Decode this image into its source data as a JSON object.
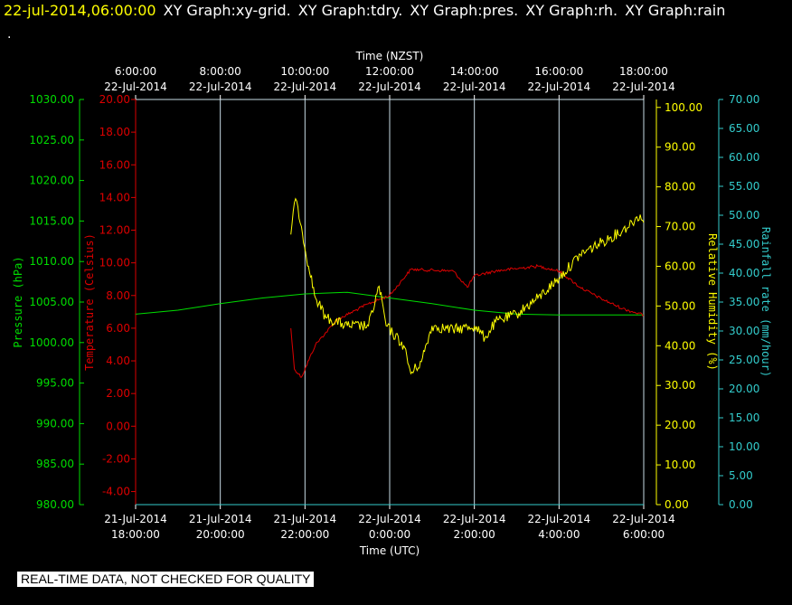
{
  "header": {
    "timestamp": "22-jul-2014,06:00:00",
    "titles": [
      "XY Graph:xy-grid.",
      "XY Graph:tdry.",
      "XY Graph:pres.",
      "XY Graph:rh.",
      "XY Graph:rain"
    ],
    "dot": "."
  },
  "notice": "REAL-TIME DATA, NOT CHECKED FOR QUALITY",
  "colors": {
    "background": "#000000",
    "grid": "#c8dce6",
    "pressure": "#00dd00",
    "temperature": "#dd0000",
    "humidity": "#ffff00",
    "rain": "#33cccc",
    "text": "#ffffff"
  },
  "chart_data": {
    "type": "line",
    "grid": true,
    "x_bottom": {
      "label": "Time (UTC)",
      "range": [
        "21-Jul-2014 18:00:00",
        "22-Jul-2014 06:00:00"
      ],
      "ticks": [
        {
          "date": "21-Jul-2014",
          "time": "18:00:00"
        },
        {
          "date": "21-Jul-2014",
          "time": "20:00:00"
        },
        {
          "date": "21-Jul-2014",
          "time": "22:00:00"
        },
        {
          "date": "22-Jul-2014",
          "time": "0:00:00"
        },
        {
          "date": "22-Jul-2014",
          "time": "2:00:00"
        },
        {
          "date": "22-Jul-2014",
          "time": "4:00:00"
        },
        {
          "date": "22-Jul-2014",
          "time": "6:00:00"
        }
      ]
    },
    "x_top": {
      "label": "Time (NZST)",
      "ticks": [
        {
          "time": "6:00:00",
          "date": "22-Jul-2014"
        },
        {
          "time": "8:00:00",
          "date": "22-Jul-2014"
        },
        {
          "time": "10:00:00",
          "date": "22-Jul-2014"
        },
        {
          "time": "12:00:00",
          "date": "22-Jul-2014"
        },
        {
          "time": "14:00:00",
          "date": "22-Jul-2014"
        },
        {
          "time": "16:00:00",
          "date": "22-Jul-2014"
        },
        {
          "time": "18:00:00",
          "date": "22-Jul-2014"
        }
      ]
    },
    "axes": {
      "pressure": {
        "label": "Pressure (hPa)",
        "range": [
          980,
          1030
        ],
        "ticks": [
          "980.00",
          "985.00",
          "990.00",
          "995.00",
          "1000.00",
          "1005.00",
          "1010.00",
          "1015.00",
          "1020.00",
          "1025.00",
          "1030.00"
        ]
      },
      "temperature": {
        "label": "Temperature (Celsius)",
        "range": [
          -4.8,
          20
        ],
        "ticks": [
          "-4.00",
          "-2.00",
          "0.00",
          "2.00",
          "4.00",
          "6.00",
          "8.00",
          "10.00",
          "12.00",
          "14.00",
          "16.00",
          "18.00",
          "20.00"
        ]
      },
      "humidity": {
        "label": "Relative Humidity (%)",
        "range": [
          0,
          102
        ],
        "ticks": [
          "0.00",
          "10.00",
          "20.00",
          "30.00",
          "40.00",
          "50.00",
          "60.00",
          "70.00",
          "80.00",
          "90.00",
          "100.00"
        ]
      },
      "rain": {
        "label": "Rainfall rate (mm/hour)",
        "range": [
          0,
          70
        ],
        "ticks": [
          "0.00",
          "5.00",
          "10.00",
          "15.00",
          "20.00",
          "25.00",
          "30.00",
          "35.00",
          "40.00",
          "45.00",
          "50.00",
          "55.00",
          "60.00",
          "65.00",
          "70.00"
        ]
      }
    },
    "series": [
      {
        "name": "Pressure (hPa)",
        "axis": "pressure",
        "color": "#00dd00",
        "x": [
          "21-Jul-2014 18:00",
          "21-Jul-2014 19:00",
          "21-Jul-2014 20:00",
          "21-Jul-2014 21:00",
          "21-Jul-2014 22:00",
          "21-Jul-2014 23:00",
          "22-Jul-2014 00:00",
          "22-Jul-2014 01:00",
          "22-Jul-2014 02:00",
          "22-Jul-2014 03:00",
          "22-Jul-2014 04:00",
          "22-Jul-2014 05:00",
          "22-Jul-2014 06:00"
        ],
        "y": [
          1003.5,
          1004.0,
          1004.8,
          1005.5,
          1006.0,
          1006.2,
          1005.5,
          1004.8,
          1004.0,
          1003.5,
          1003.4,
          1003.4,
          1003.4
        ]
      },
      {
        "name": "Temperature (Celsius)",
        "axis": "temperature",
        "color": "#dd0000",
        "x": [
          "21-Jul-2014 21:40",
          "21-Jul-2014 21:45",
          "21-Jul-2014 21:55",
          "21-Jul-2014 22:15",
          "21-Jul-2014 22:45",
          "21-Jul-2014 23:30",
          "22-Jul-2014 00:00",
          "22-Jul-2014 00:30",
          "22-Jul-2014 01:30",
          "22-Jul-2014 01:50",
          "22-Jul-2014 02:00",
          "22-Jul-2014 02:30",
          "22-Jul-2014 03:30",
          "22-Jul-2014 04:00",
          "22-Jul-2014 04:30",
          "22-Jul-2014 05:00",
          "22-Jul-2014 05:30",
          "22-Jul-2014 06:00"
        ],
        "y": [
          6.0,
          3.5,
          3.0,
          5.0,
          6.5,
          7.5,
          8.0,
          9.6,
          9.5,
          8.5,
          9.2,
          9.5,
          9.8,
          9.5,
          8.5,
          7.8,
          7.2,
          6.8
        ]
      },
      {
        "name": "Relative Humidity (%)",
        "axis": "humidity",
        "color": "#ffff00",
        "x": [
          "21-Jul-2014 21:40",
          "21-Jul-2014 21:45",
          "21-Jul-2014 21:50",
          "21-Jul-2014 21:55",
          "21-Jul-2014 22:05",
          "21-Jul-2014 22:15",
          "21-Jul-2014 22:30",
          "21-Jul-2014 23:00",
          "21-Jul-2014 23:30",
          "21-Jul-2014 23:45",
          "21-Jul-2014 23:55",
          "22-Jul-2014 00:20",
          "22-Jul-2014 00:30",
          "22-Jul-2014 00:45",
          "22-Jul-2014 01:00",
          "22-Jul-2014 01:30",
          "22-Jul-2014 02:00",
          "22-Jul-2014 02:15",
          "22-Jul-2014 02:30",
          "22-Jul-2014 03:00",
          "22-Jul-2014 03:30",
          "22-Jul-2014 04:00",
          "22-Jul-2014 04:30",
          "22-Jul-2014 05:00",
          "22-Jul-2014 05:30",
          "22-Jul-2014 05:55",
          "22-Jul-2014 06:00"
        ],
        "y": [
          68,
          76,
          75,
          70,
          60,
          52,
          47,
          45,
          45,
          55,
          45,
          40,
          33,
          36,
          45,
          44,
          45,
          42,
          46,
          48,
          52,
          57,
          63,
          66,
          69,
          73,
          71
        ]
      },
      {
        "name": "Rainfall rate (mm/hour)",
        "axis": "rain",
        "color": "#33cccc",
        "x": [
          "21-Jul-2014 18:00",
          "22-Jul-2014 06:00"
        ],
        "y": [
          0,
          0
        ]
      }
    ]
  }
}
